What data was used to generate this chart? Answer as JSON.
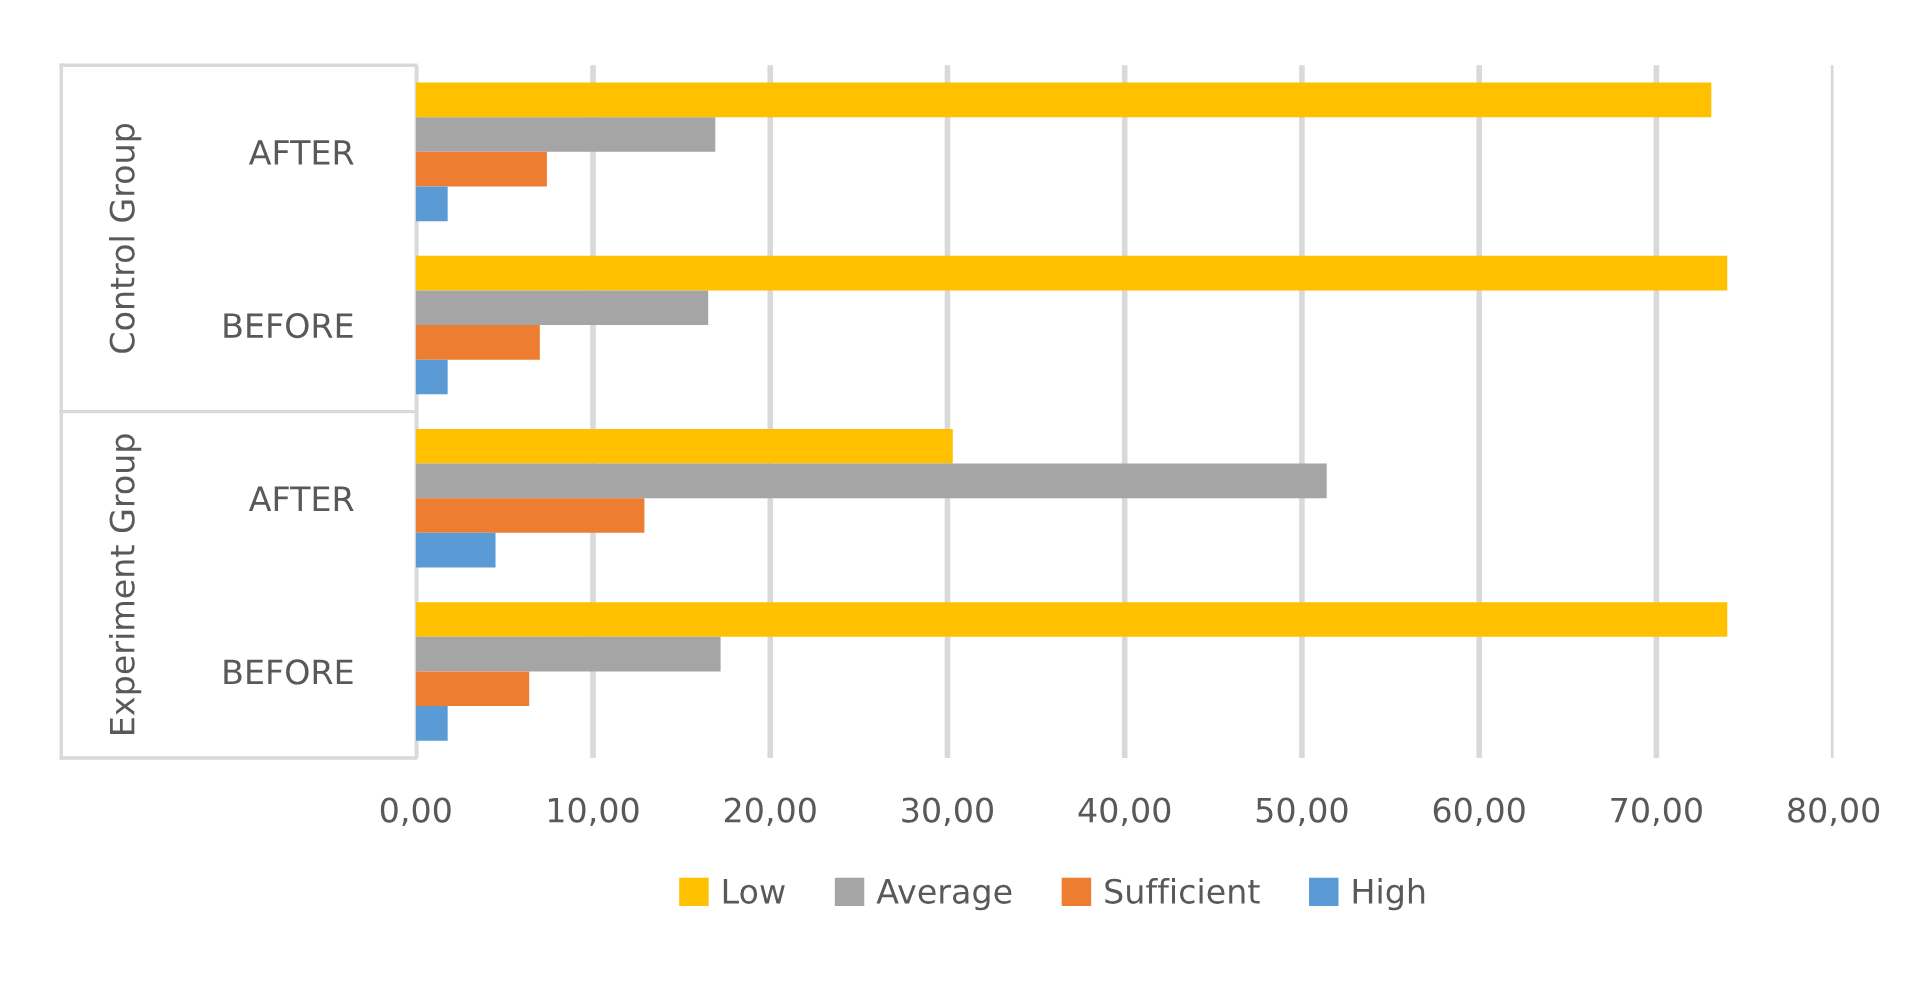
{
  "chart_data": {
    "type": "bar",
    "orientation": "horizontal",
    "categories": [
      "AFTER",
      "BEFORE",
      "AFTER",
      "BEFORE"
    ],
    "annotations": [
      "Control Group",
      "Experiment Group"
    ],
    "series": [
      {
        "name": "Low",
        "color": "#ffc000",
        "values": [
          73.1,
          74.0,
          30.3,
          74.0
        ]
      },
      {
        "name": "Average",
        "color": "#a5a5a5",
        "values": [
          16.9,
          16.5,
          51.4,
          17.2
        ]
      },
      {
        "name": "Sufficient",
        "color": "#ed7d31",
        "values": [
          7.4,
          7.0,
          12.9,
          6.4
        ]
      },
      {
        "name": "High",
        "color": "#5b9bd5",
        "values": [
          1.8,
          1.8,
          4.5,
          1.8
        ]
      }
    ],
    "xlim": [
      0,
      80
    ],
    "xticks": [
      {
        "value": 0,
        "label": "0,00"
      },
      {
        "value": 10,
        "label": "10,00"
      },
      {
        "value": 20,
        "label": "20,00"
      },
      {
        "value": 30,
        "label": "30,00"
      },
      {
        "value": 40,
        "label": "40,00"
      },
      {
        "value": 50,
        "label": "50,00"
      },
      {
        "value": 60,
        "label": "60,00"
      },
      {
        "value": 70,
        "label": "70,00"
      },
      {
        "value": 80,
        "label": "80,00"
      }
    ],
    "grid": "x",
    "legend": "bottom"
  }
}
